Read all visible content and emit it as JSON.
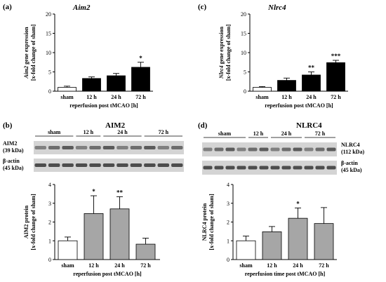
{
  "chart_data": [
    {
      "panel": "(a)",
      "type": "bar",
      "title": "Aim2",
      "ylabel_line1": "gene expression",
      "ylabel_line2": "[x-fold change of sham]",
      "ylabel_gene": "Aim2",
      "xlabel": "reperfusion post tMCAO [h]",
      "categories": [
        "sham",
        "12 h",
        "24 h",
        "72 h"
      ],
      "values": [
        1.0,
        3.3,
        4.0,
        6.2
      ],
      "errors": [
        0.3,
        0.4,
        0.6,
        1.3
      ],
      "significance": [
        "",
        "",
        "",
        "*"
      ],
      "bar_colors": [
        "#ffffff",
        "#000000",
        "#000000",
        "#000000"
      ],
      "ylim": [
        0,
        20
      ],
      "yticks": [
        0,
        5,
        10,
        15,
        20
      ]
    },
    {
      "panel": "(c)",
      "type": "bar",
      "title": "Nlrc4",
      "ylabel_line1": "gene expression",
      "ylabel_line2": "[x-fold change of sham]",
      "ylabel_gene": "Nlrc4",
      "xlabel": "reperfusion post tMCAO [h]",
      "categories": [
        "sham",
        "12 h",
        "24 h",
        "72 h"
      ],
      "values": [
        1.0,
        2.8,
        4.2,
        7.4
      ],
      "errors": [
        0.2,
        0.6,
        0.8,
        0.6
      ],
      "significance": [
        "",
        "",
        "**",
        "***"
      ],
      "bar_colors": [
        "#ffffff",
        "#000000",
        "#000000",
        "#000000"
      ],
      "ylim": [
        0,
        20
      ],
      "yticks": [
        0,
        5,
        10,
        15,
        20
      ]
    },
    {
      "panel": "(b)",
      "type": "bar",
      "title": "AIM2",
      "ylabel_line1": "AIM2 protein",
      "ylabel_line2": "[x-fold change of sham]",
      "xlabel": "reperfusion post tMCAO [h]",
      "categories": [
        "sham",
        "12 h",
        "24 h",
        "72 h"
      ],
      "values": [
        1.0,
        2.45,
        2.7,
        0.82
      ],
      "errors": [
        0.2,
        0.95,
        0.65,
        0.32
      ],
      "significance": [
        "",
        "*",
        "**",
        ""
      ],
      "bar_colors": [
        "#ffffff",
        "#a6a6a6",
        "#a6a6a6",
        "#a6a6a6"
      ],
      "ylim": [
        0,
        4
      ],
      "yticks": [
        0,
        1,
        2,
        3,
        4
      ]
    },
    {
      "panel": "(d)",
      "type": "bar",
      "title": "NLRC4",
      "ylabel_line1": "NLRC4 protein",
      "ylabel_line2": "[x-fold change of sham]",
      "xlabel": "reperfusion time post tMCAO [h]",
      "categories": [
        "sham",
        "12 h",
        "24 h",
        "72 h"
      ],
      "values": [
        1.0,
        1.48,
        2.2,
        1.92
      ],
      "errors": [
        0.25,
        0.28,
        0.55,
        0.85
      ],
      "significance": [
        "",
        "",
        "*",
        ""
      ],
      "bar_colors": [
        "#ffffff",
        "#a6a6a6",
        "#a6a6a6",
        "#a6a6a6"
      ],
      "ylim": [
        0,
        4
      ],
      "yticks": [
        0,
        1,
        2,
        3,
        4
      ]
    }
  ],
  "blots": [
    {
      "panel": "(b)",
      "groups": [
        "sham",
        "12 h",
        "24 h",
        "72 h"
      ],
      "group_lanes": [
        3,
        2,
        3,
        3
      ],
      "band_labels": [
        {
          "name": "AIM2",
          "kda": "(39 kDa)"
        },
        {
          "name": "β-actin",
          "kda": "(45 kDa)"
        }
      ],
      "label_side": "left"
    },
    {
      "panel": "(d)",
      "groups": [
        "sham",
        "12 h",
        "24 h",
        "72 h"
      ],
      "group_lanes": [
        4,
        2,
        3,
        3
      ],
      "band_labels": [
        {
          "name": "NLRC4",
          "kda": "(112 kDa)"
        },
        {
          "name": "β-actin",
          "kda": "(45 kDa)"
        }
      ],
      "label_side": "right"
    }
  ]
}
